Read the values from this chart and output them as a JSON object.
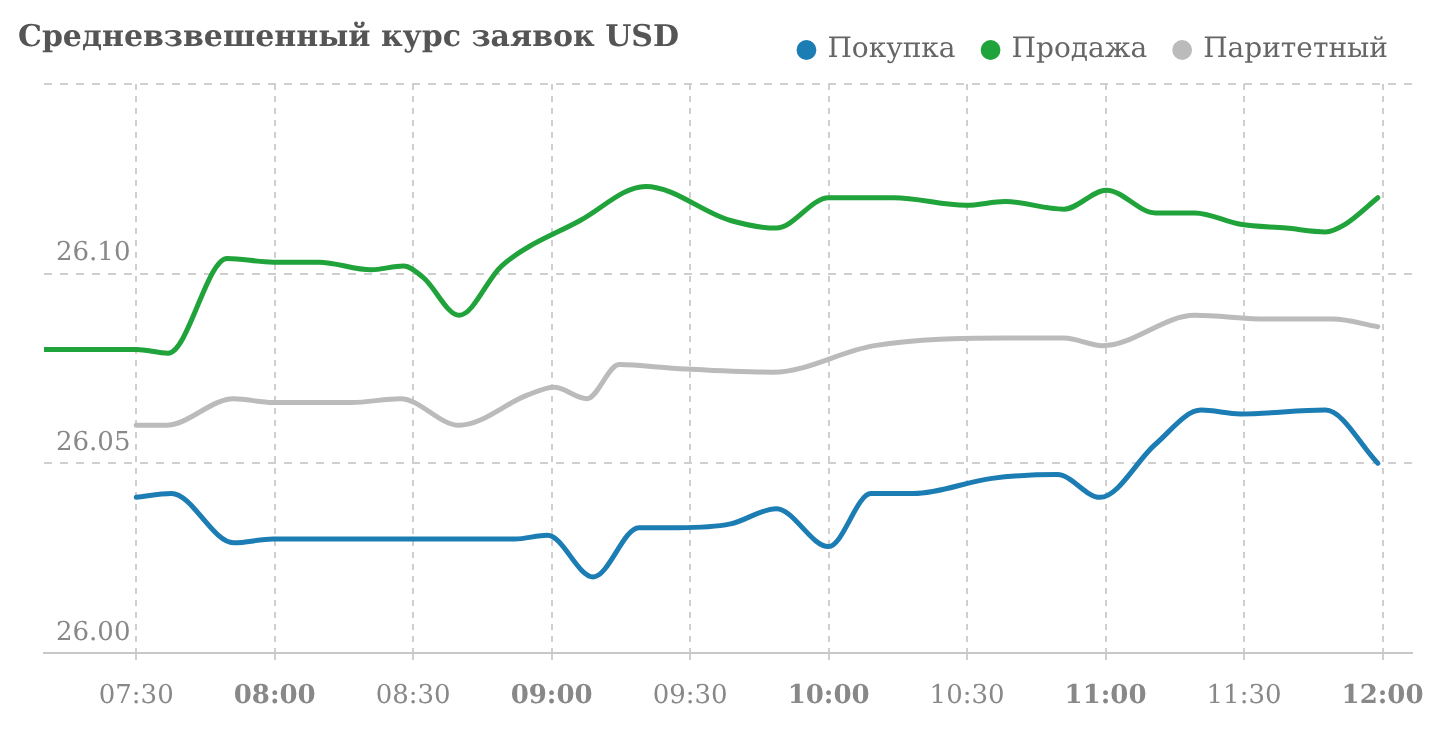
{
  "chart_data": {
    "type": "line",
    "title": "Средневзвешенный курс заявок USD",
    "legend": "top right",
    "marker": "none",
    "line_style": "solid",
    "grid": true,
    "xlim": [
      7.167,
      12.106
    ],
    "xticks": [
      {
        "value": 7.5,
        "label": "07:30"
      },
      {
        "value": 8,
        "label": "08:00"
      },
      {
        "value": 8.5,
        "label": "08:30"
      },
      {
        "value": 9,
        "label": "09:00"
      },
      {
        "value": 9.5,
        "label": "09:30"
      },
      {
        "value": 10,
        "label": "10:00"
      },
      {
        "value": 10.5,
        "label": "10:30"
      },
      {
        "value": 11,
        "label": "11:00"
      },
      {
        "value": 11.5,
        "label": "11:30"
      },
      {
        "value": 12,
        "label": "12:00"
      }
    ],
    "ylim": [
      26.0,
      26.15
    ],
    "yticks": [
      {
        "value": 26.0,
        "label": "26.00"
      },
      {
        "value": 26.05,
        "label": "26.05"
      },
      {
        "value": 26.1,
        "label": "26.10"
      },
      {
        "value": 26.15,
        "label": null
      }
    ],
    "series": [
      {
        "name": "Покупка",
        "color": "#1b7db3",
        "x": [
          7.5,
          7.627,
          7.852,
          7.994,
          8.867,
          8.985,
          9.15,
          9.315,
          9.457,
          9.646,
          9.811,
          10.0,
          10.153,
          10.307,
          10.59,
          10.826,
          10.98,
          11.18,
          11.345,
          11.487,
          11.794,
          11.983
        ],
        "values": [
          26.041,
          26.042,
          26.029,
          26.03,
          26.03,
          26.031,
          26.02,
          26.033,
          26.033,
          26.034,
          26.038,
          26.028,
          26.042,
          26.042,
          26.046,
          26.047,
          26.041,
          26.055,
          26.064,
          26.063,
          26.064,
          26.05
        ]
      },
      {
        "name": "Продажа",
        "color": "#1fa33a",
        "x": [
          7.167,
          7.5,
          7.615,
          7.828,
          7.994,
          8.159,
          8.348,
          8.465,
          8.536,
          8.666,
          8.819,
          9.103,
          9.339,
          9.646,
          9.811,
          10.0,
          10.236,
          10.496,
          10.637,
          10.85,
          11.003,
          11.18,
          11.322,
          11.487,
          11.652,
          11.794,
          11.865,
          11.983
        ],
        "values": [
          26.08,
          26.08,
          26.079,
          26.104,
          26.103,
          26.103,
          26.101,
          26.102,
          26.099,
          26.089,
          26.102,
          26.114,
          26.123,
          26.114,
          26.112,
          26.12,
          26.12,
          26.118,
          26.119,
          26.117,
          26.122,
          26.116,
          26.116,
          26.113,
          26.112,
          26.111,
          26.113,
          26.12
        ]
      },
      {
        "name": "Паритетный",
        "color": "#bbbbbb",
        "x": [
          7.5,
          7.607,
          7.852,
          7.994,
          8.277,
          8.454,
          8.666,
          8.914,
          9.009,
          9.127,
          9.244,
          9.45,
          9.8,
          10.165,
          10.637,
          10.85,
          10.99,
          11.322,
          11.582,
          11.82,
          11.983
        ],
        "values": [
          26.06,
          26.06,
          26.067,
          26.066,
          26.066,
          26.067,
          26.06,
          26.068,
          26.07,
          26.067,
          26.076,
          26.075,
          26.074,
          26.081,
          26.083,
          26.083,
          26.081,
          26.089,
          26.088,
          26.088,
          26.086
        ]
      }
    ]
  }
}
